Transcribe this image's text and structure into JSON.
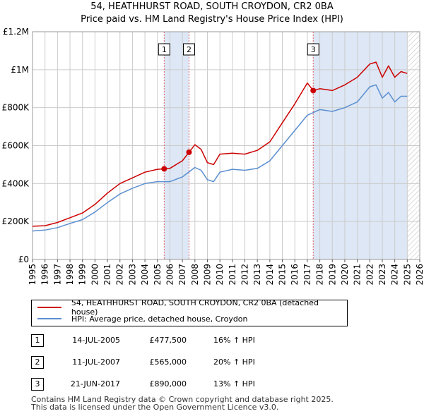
{
  "title": "54, HEATHHURST ROAD, SOUTH CROYDON, CR2 0BA",
  "subtitle": "Price paid vs. HM Land Registry's House Price Index (HPI)",
  "colors": {
    "property": "#cc0000",
    "hpi": "#5b8fd0",
    "shade": "#dde7f5",
    "grid": "#cccccc"
  },
  "chart_data": {
    "type": "line",
    "title": "54, HEATHHURST ROAD, SOUTH CROYDON, CR2 0BA",
    "subtitle": "Price paid vs. HM Land Registry's House Price Index (HPI)",
    "xlabel": "",
    "ylabel": "",
    "xlim": [
      1995,
      2026
    ],
    "ylim": [
      0,
      1200000
    ],
    "x_ticks": [
      "1995",
      "1996",
      "1997",
      "1998",
      "1999",
      "2000",
      "2001",
      "2002",
      "2003",
      "2004",
      "2005",
      "2006",
      "2007",
      "2008",
      "2009",
      "2010",
      "2011",
      "2012",
      "2013",
      "2014",
      "2015",
      "2016",
      "2017",
      "2018",
      "2019",
      "2020",
      "2021",
      "2022",
      "2023",
      "2024",
      "2025",
      "2026"
    ],
    "y_ticks": [
      {
        "value": 0,
        "label": "£0"
      },
      {
        "value": 200000,
        "label": "£200K"
      },
      {
        "value": 400000,
        "label": "£400K"
      },
      {
        "value": 600000,
        "label": "£600K"
      },
      {
        "value": 800000,
        "label": "£800K"
      },
      {
        "value": 1000000,
        "label": "£1M"
      },
      {
        "value": 1200000,
        "label": "£1.2M"
      }
    ],
    "grid": true,
    "shaded_ranges": [
      [
        2005.54,
        2007.53
      ],
      [
        2017.47,
        2025.0
      ]
    ],
    "hatched_from": 2025.0,
    "series": [
      {
        "name": "54, HEATHHURST ROAD, SOUTH CROYDON, CR2 0BA (detached house)",
        "color": "#cc0000",
        "x": [
          1995,
          1996,
          1997,
          1998,
          1999,
          2000,
          2001,
          2002,
          2003,
          2004,
          2005,
          2005.54,
          2006,
          2007,
          2007.53,
          2008,
          2008.5,
          2009,
          2009.5,
          2010,
          2011,
          2012,
          2013,
          2014,
          2015,
          2016,
          2017,
          2017.47,
          2018,
          2019,
          2020,
          2021,
          2022,
          2022.5,
          2023,
          2023.5,
          2024,
          2024.5,
          2025
        ],
        "values": [
          175000,
          178000,
          195000,
          220000,
          245000,
          290000,
          350000,
          400000,
          430000,
          460000,
          475000,
          477500,
          480000,
          520000,
          565000,
          605000,
          580000,
          510000,
          500000,
          555000,
          560000,
          555000,
          575000,
          620000,
          720000,
          820000,
          930000,
          890000,
          900000,
          890000,
          920000,
          960000,
          1030000,
          1040000,
          960000,
          1020000,
          960000,
          990000,
          980000
        ]
      },
      {
        "name": "HPI: Average price, detached house, Croydon",
        "color": "#5b8fd0",
        "x": [
          1995,
          1996,
          1997,
          1998,
          1999,
          2000,
          2001,
          2002,
          2003,
          2004,
          2005,
          2006,
          2007,
          2008,
          2008.5,
          2009,
          2009.5,
          2010,
          2011,
          2012,
          2013,
          2014,
          2015,
          2016,
          2017,
          2018,
          2019,
          2020,
          2021,
          2022,
          2022.5,
          2023,
          2023.5,
          2024,
          2024.5,
          2025
        ],
        "values": [
          150000,
          155000,
          168000,
          190000,
          210000,
          250000,
          300000,
          345000,
          375000,
          400000,
          410000,
          410000,
          435000,
          485000,
          470000,
          420000,
          410000,
          460000,
          475000,
          470000,
          480000,
          520000,
          600000,
          680000,
          760000,
          790000,
          780000,
          800000,
          830000,
          910000,
          920000,
          850000,
          880000,
          830000,
          860000,
          860000
        ]
      }
    ],
    "sales": [
      {
        "n": "1",
        "x": 2005.54,
        "value": 477500
      },
      {
        "n": "2",
        "x": 2007.53,
        "value": 565000
      },
      {
        "n": "3",
        "x": 2017.47,
        "value": 890000
      }
    ]
  },
  "legend": {
    "property": "54, HEATHHURST ROAD, SOUTH CROYDON, CR2 0BA (detached house)",
    "hpi": "HPI: Average price, detached house, Croydon"
  },
  "sales_table": [
    {
      "n": "1",
      "date": "14-JUL-2005",
      "price": "£477,500",
      "hpi": "16% ↑ HPI"
    },
    {
      "n": "2",
      "date": "11-JUL-2007",
      "price": "£565,000",
      "hpi": "20% ↑ HPI"
    },
    {
      "n": "3",
      "date": "21-JUN-2017",
      "price": "£890,000",
      "hpi": "13% ↑ HPI"
    }
  ],
  "footer": {
    "line1": "Contains HM Land Registry data © Crown copyright and database right 2025.",
    "line2": "This data is licensed under the Open Government Licence v3.0."
  }
}
